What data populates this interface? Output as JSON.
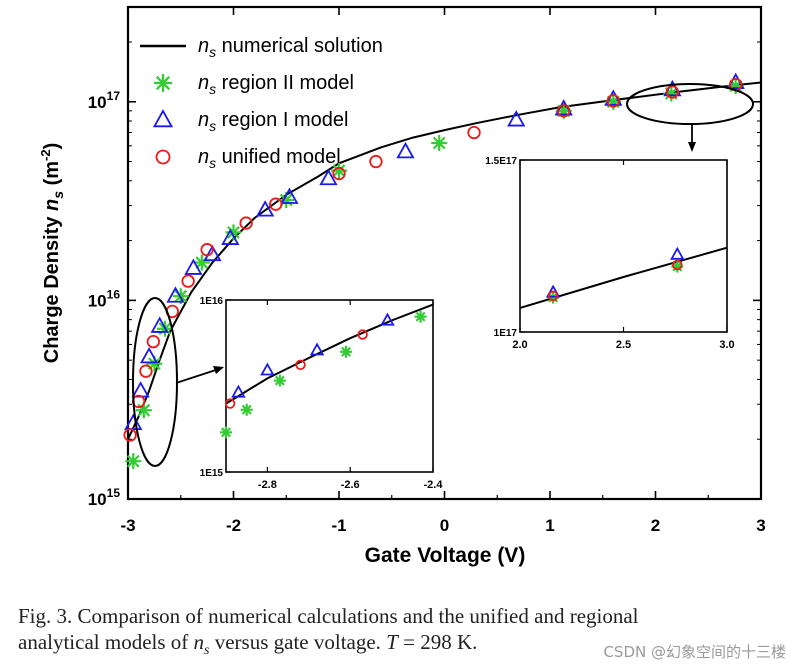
{
  "chart_data": {
    "type": "scatter",
    "title": "",
    "xlabel": "Gate Voltage (V)",
    "ylabel_main": "Charge Density ",
    "ylabel_var": "n",
    "ylabel_sub": "s",
    "ylabel_unit": " (m",
    "ylabel_exp": "-2",
    "ylabel_close": ")",
    "yscale": "log",
    "xlim": [
      -3,
      3
    ],
    "ylim": [
      1000000000000000.0,
      3e+17
    ],
    "xticks": [
      "-3",
      "-2",
      "-1",
      "0",
      "1",
      "2",
      "3"
    ],
    "xtick_values": [
      -3,
      -2,
      -1,
      0,
      1,
      2,
      3
    ],
    "yticks": [
      {
        "value": 1000000000000000.0,
        "base": "10",
        "exp": "15"
      },
      {
        "value": 1e+16,
        "base": "10",
        "exp": "16"
      },
      {
        "value": 1e+17,
        "base": "10",
        "exp": "17"
      }
    ],
    "legend": [
      {
        "var": "n",
        "sub": "s",
        "text": " numerical solution",
        "marker": "line",
        "color": "#000000"
      },
      {
        "var": "n",
        "sub": "s",
        "text": " region II model",
        "marker": "asterisk",
        "color": "#33cc33"
      },
      {
        "var": "n",
        "sub": "s",
        "text": " region I model",
        "marker": "triangle",
        "color": "#1a1aee"
      },
      {
        "var": "n",
        "sub": "s",
        "text": " unified model",
        "marker": "circle",
        "color": "#ee1a1a"
      }
    ],
    "series": [
      {
        "name": "numerical solution",
        "kind": "line",
        "color": "#000000",
        "x": [
          -3.0,
          -2.9,
          -2.8,
          -2.7,
          -2.6,
          -2.4,
          -2.2,
          -2.0,
          -1.8,
          -1.5,
          -1.2,
          -1.0,
          -0.6,
          -0.3,
          0.0,
          0.3,
          0.7,
          1.1,
          1.6,
          2.2,
          2.75,
          3.0
        ],
        "y": [
          2000000000000000.0,
          2600000000000000.0,
          3500000000000000.0,
          5000000000000000.0,
          7000000000000000.0,
          1.1e+16,
          1.55e+16,
          2.05e+16,
          2.6e+16,
          3.4e+16,
          4.2e+16,
          4.9e+16,
          5.9e+16,
          6.6e+16,
          7.2e+16,
          7.8e+16,
          8.6e+16,
          9.4e+16,
          1.02e+17,
          1.12e+17,
          1.21e+17,
          1.25e+17
        ]
      },
      {
        "name": "region II model",
        "kind": "asterisk",
        "color": "#33cc33",
        "x": [
          -2.95,
          -2.85,
          -2.75,
          -2.65,
          -2.5,
          -2.3,
          -2.0,
          -1.5,
          -1.0,
          -0.05,
          1.13,
          1.6,
          2.15,
          2.76
        ],
        "y": [
          1550000000000000.0,
          2800000000000000.0,
          4800000000000000.0,
          7200000000000000.0,
          1.05e+16,
          1.55e+16,
          2.2e+16,
          3.2e+16,
          4.5e+16,
          6.2e+16,
          9e+16,
          1e+17,
          1.1e+17,
          1.2e+17
        ]
      },
      {
        "name": "region I model",
        "kind": "triangle",
        "color": "#1a1aee",
        "x": [
          -2.95,
          -2.88,
          -2.8,
          -2.7,
          -2.55,
          -2.38,
          -2.2,
          -2.03,
          -1.7,
          -1.47,
          -1.1,
          -0.37,
          0.68,
          1.13,
          1.6,
          2.16,
          2.76
        ],
        "y": [
          2400000000000000.0,
          3500000000000000.0,
          5200000000000000.0,
          7400000000000000.0,
          1.05e+16,
          1.45e+16,
          1.7e+16,
          2.05e+16,
          2.85e+16,
          3.3e+16,
          4.1e+16,
          5.6e+16,
          8.1e+16,
          9.2e+16,
          1.03e+17,
          1.15e+17,
          1.25e+17
        ]
      },
      {
        "name": "unified model",
        "kind": "circle",
        "color": "#ee1a1a",
        "x": [
          -2.98,
          -2.9,
          -2.83,
          -2.76,
          -2.58,
          -2.43,
          -2.25,
          -1.88,
          -1.6,
          -1.0,
          -0.65,
          0.28,
          1.13,
          1.6,
          2.16,
          2.76
        ],
        "y": [
          2100000000000000.0,
          3100000000000000.0,
          4400000000000000.0,
          6200000000000000.0,
          8800000000000000.0,
          1.25e+16,
          1.8e+16,
          2.45e+16,
          3.05e+16,
          4.35e+16,
          5e+16,
          7e+16,
          9e+16,
          1.01e+17,
          1.12e+17,
          1.22e+17
        ]
      }
    ],
    "insets": [
      {
        "name": "inset-left",
        "xlim": [
          -2.9,
          -2.4
        ],
        "ylim": [
          1000000000000000.0,
          1e+16
        ],
        "yscale": "log",
        "xticks": [
          "-2.8",
          "-2.6",
          "-2.4"
        ],
        "xtick_values": [
          -2.8,
          -2.6,
          -2.4
        ],
        "yticks": [
          "1E16",
          "1E15"
        ],
        "ytick_values": [
          1e+16,
          1000000000000000.0
        ],
        "series": [
          {
            "name": "numerical solution",
            "kind": "line",
            "color": "#000000",
            "x": [
              -2.9,
              -2.8,
              -2.7,
              -2.6,
              -2.5,
              -2.4
            ],
            "y": [
              2500000000000000.0,
              3500000000000000.0,
              4600000000000000.0,
              6000000000000000.0,
              7600000000000000.0,
              9400000000000000.0
            ]
          },
          {
            "name": "region II model",
            "kind": "asterisk",
            "color": "#33cc33",
            "x": [
              -2.9,
              -2.85,
              -2.77,
              -2.61,
              -2.43
            ],
            "y": [
              1700000000000000.0,
              2300000000000000.0,
              3400000000000000.0,
              5000000000000000.0,
              8000000000000000.0
            ]
          },
          {
            "name": "region I model",
            "kind": "triangle",
            "color": "#1a1aee",
            "x": [
              -2.87,
              -2.8,
              -2.68,
              -2.51
            ],
            "y": [
              2900000000000000.0,
              3900000000000000.0,
              5100000000000000.0,
              7600000000000000.0
            ]
          },
          {
            "name": "unified model",
            "kind": "circle",
            "color": "#ee1a1a",
            "x": [
              -2.89,
              -2.72,
              -2.57
            ],
            "y": [
              2500000000000000.0,
              4200000000000000.0,
              6300000000000000.0
            ]
          }
        ]
      },
      {
        "name": "inset-right",
        "xlim": [
          2.0,
          3.0
        ],
        "ylim": [
          1e+17,
          1.5e+17
        ],
        "yscale": "linear",
        "xticks": [
          "2.0",
          "2.5",
          "3.0"
        ],
        "xtick_values": [
          2.0,
          2.5,
          3.0
        ],
        "yticks": [
          "1.5E17",
          "1E17"
        ],
        "ytick_values": [
          1.5e+17,
          1e+17
        ],
        "series": [
          {
            "name": "numerical solution",
            "kind": "line",
            "color": "#000000",
            "x": [
              2.0,
              2.5,
              3.0
            ],
            "y": [
              1.07e+17,
              1.16e+17,
              1.245e+17
            ]
          },
          {
            "name": "region II model",
            "kind": "asterisk",
            "color": "#33cc33",
            "x": [
              2.16,
              2.76
            ],
            "y": [
              1.1e+17,
              1.19e+17
            ]
          },
          {
            "name": "region I model",
            "kind": "triangle",
            "color": "#1a1aee",
            "x": [
              2.16,
              2.76
            ],
            "y": [
              1.115e+17,
              1.225e+17
            ]
          },
          {
            "name": "unified model",
            "kind": "circle",
            "color": "#ee1a1a",
            "x": [
              2.16,
              2.76
            ],
            "y": [
              1.105e+17,
              1.195e+17
            ]
          }
        ]
      }
    ]
  },
  "caption": {
    "line1": "Fig. 3.   Comparison of numerical calculations and the unified and regional",
    "line2_pre": "analytical models of ",
    "var": "n",
    "sub": "s",
    "line2_post": " versus gate voltage. ",
    "T": "T",
    "eq": " = 298 K."
  },
  "watermark": "CSDN @幻象空间的十三楼"
}
